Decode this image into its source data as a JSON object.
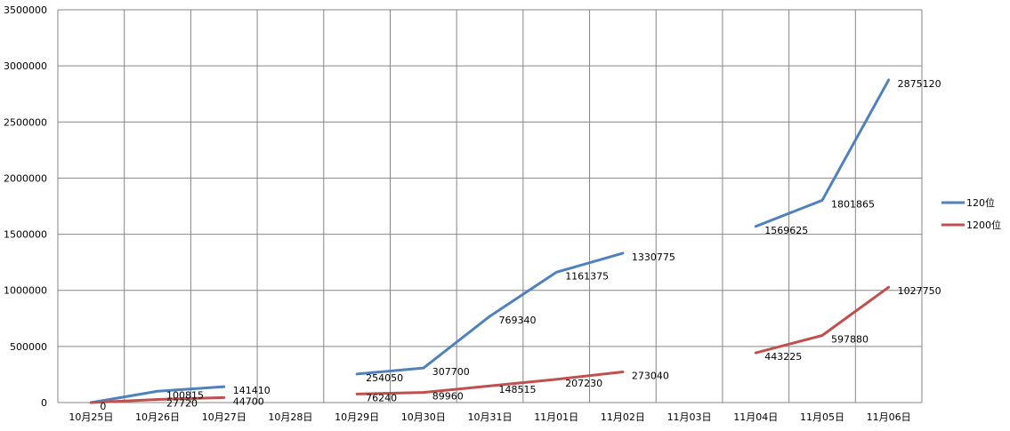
{
  "chart_data": {
    "type": "line",
    "categories": [
      "10月25日",
      "10月26日",
      "10月27日",
      "10月28日",
      "10月29日",
      "10月30日",
      "10月31日",
      "11月01日",
      "11月02日",
      "11月03日",
      "11月04日",
      "11月05日",
      "11月06日"
    ],
    "yticks": [
      "0",
      "500000",
      "1000000",
      "1500000",
      "2000000",
      "2500000",
      "3000000",
      "3500000"
    ],
    "ylim": [
      0,
      3500000
    ],
    "grid": true,
    "legend_position": "right",
    "series": [
      {
        "name": "120位",
        "color": "#4F81BD",
        "values": [
          0,
          100815,
          141410,
          null,
          254050,
          307700,
          769340,
          1161375,
          1330775,
          null,
          1569625,
          1801865,
          2875120
        ],
        "labels": [
          "0",
          "100815",
          "141410",
          null,
          "254050",
          "307700",
          "769340",
          "1161375",
          "1330775",
          null,
          "1569625",
          "1801865",
          "2875120"
        ]
      },
      {
        "name": "1200位",
        "color": "#C0504D",
        "values": [
          0,
          27720,
          44700,
          null,
          76240,
          89960,
          148515,
          207230,
          273040,
          null,
          443225,
          597880,
          1027750
        ],
        "labels": [
          null,
          "27720",
          "44700",
          null,
          "76240",
          "89960",
          "148515",
          "207230",
          "273040",
          null,
          "443225",
          "597880",
          "1027750"
        ]
      }
    ]
  }
}
